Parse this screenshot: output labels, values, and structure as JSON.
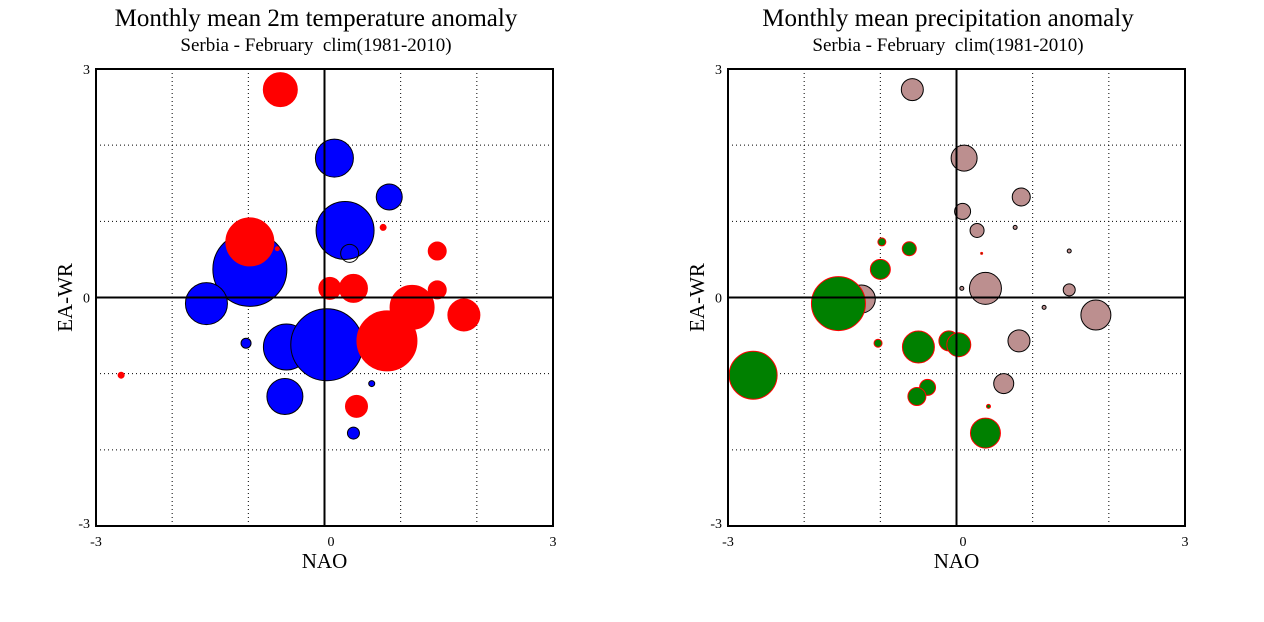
{
  "chart_data": [
    {
      "type": "scatter",
      "subtype": "bubble",
      "title": "Monthly mean 2m temperature anomaly",
      "subtitle": "Serbia - February  clim(1981-2010)",
      "xlabel": "NAO",
      "ylabel": "EA-WR",
      "xlim": [
        -3,
        3
      ],
      "ylim": [
        -3,
        3
      ],
      "xticks": [
        "-3",
        "0",
        "3"
      ],
      "yticks": [
        "-3",
        "0",
        "3"
      ],
      "grid": true,
      "colors": {
        "positive": "#ff0000",
        "negative": "#0000ff"
      },
      "points": [
        {
          "x": -0.58,
          "y": 2.73,
          "r": 17,
          "sign": "positive"
        },
        {
          "x": 0.13,
          "y": 1.83,
          "r": 19,
          "sign": "negative"
        },
        {
          "x": 0.85,
          "y": 1.32,
          "r": 13,
          "sign": "negative"
        },
        {
          "x": 0.08,
          "y": 1.13,
          "r": 2,
          "sign": "positive"
        },
        {
          "x": 0.27,
          "y": 0.88,
          "r": 29,
          "sign": "negative"
        },
        {
          "x": 0.77,
          "y": 0.92,
          "r": 3,
          "sign": "positive"
        },
        {
          "x": -0.98,
          "y": 0.37,
          "r": 37,
          "sign": "negative"
        },
        {
          "x": -0.98,
          "y": 0.73,
          "r": 24,
          "sign": "positive"
        },
        {
          "x": -0.62,
          "y": 0.64,
          "r": 2,
          "sign": "positive"
        },
        {
          "x": 0.33,
          "y": 0.58,
          "r": 9,
          "sign": "none"
        },
        {
          "x": 1.48,
          "y": 0.61,
          "r": 9,
          "sign": "positive"
        },
        {
          "x": 0.07,
          "y": 0.12,
          "r": 11,
          "sign": "positive"
        },
        {
          "x": 0.38,
          "y": 0.12,
          "r": 14,
          "sign": "positive"
        },
        {
          "x": 1.48,
          "y": 0.1,
          "r": 9,
          "sign": "positive"
        },
        {
          "x": -1.55,
          "y": -0.08,
          "r": 21,
          "sign": "negative"
        },
        {
          "x": 1.15,
          "y": -0.13,
          "r": 22,
          "sign": "positive"
        },
        {
          "x": 1.83,
          "y": -0.23,
          "r": 16,
          "sign": "positive"
        },
        {
          "x": -1.03,
          "y": -0.6,
          "r": 5,
          "sign": "negative"
        },
        {
          "x": -0.5,
          "y": -0.65,
          "r": 23,
          "sign": "negative"
        },
        {
          "x": 0.03,
          "y": -0.62,
          "r": 36,
          "sign": "negative"
        },
        {
          "x": 0.82,
          "y": -0.57,
          "r": 30,
          "sign": "positive"
        },
        {
          "x": -2.67,
          "y": -1.02,
          "r": 3,
          "sign": "positive"
        },
        {
          "x": 0.62,
          "y": -1.13,
          "r": 3,
          "sign": "negative"
        },
        {
          "x": -0.52,
          "y": -1.3,
          "r": 18,
          "sign": "negative"
        },
        {
          "x": 0.42,
          "y": -1.43,
          "r": 11,
          "sign": "positive"
        },
        {
          "x": 0.38,
          "y": -1.78,
          "r": 6,
          "sign": "negative"
        }
      ]
    },
    {
      "type": "scatter",
      "subtype": "bubble",
      "title": "Monthly mean precipitation anomaly",
      "subtitle": "Serbia - February  clim(1981-2010)",
      "xlabel": "NAO",
      "ylabel": "EA-WR",
      "xlim": [
        -3,
        3
      ],
      "ylim": [
        -3,
        3
      ],
      "xticks": [
        "-3",
        "0",
        "3"
      ],
      "yticks": [
        "-3",
        "0",
        "3"
      ],
      "grid": true,
      "colors": {
        "positive": "#bc8f8f",
        "negative": "#008000"
      },
      "points": [
        {
          "x": -0.58,
          "y": 2.73,
          "r": 11,
          "sign": "positive"
        },
        {
          "x": 0.1,
          "y": 1.83,
          "r": 13,
          "sign": "positive"
        },
        {
          "x": 0.85,
          "y": 1.32,
          "r": 9,
          "sign": "positive"
        },
        {
          "x": 0.08,
          "y": 1.13,
          "r": 8,
          "sign": "positive"
        },
        {
          "x": 0.27,
          "y": 0.88,
          "r": 7,
          "sign": "positive"
        },
        {
          "x": 0.77,
          "y": 0.92,
          "r": 2,
          "sign": "positive"
        },
        {
          "x": -0.98,
          "y": 0.73,
          "r": 4,
          "sign": "negative"
        },
        {
          "x": -0.62,
          "y": 0.64,
          "r": 7,
          "sign": "negative"
        },
        {
          "x": 0.33,
          "y": 0.58,
          "r": 1,
          "sign": "negative"
        },
        {
          "x": 1.48,
          "y": 0.61,
          "r": 2,
          "sign": "positive"
        },
        {
          "x": -1.0,
          "y": 0.37,
          "r": 10,
          "sign": "negative"
        },
        {
          "x": 0.07,
          "y": 0.12,
          "r": 2,
          "sign": "positive"
        },
        {
          "x": 0.38,
          "y": 0.12,
          "r": 16,
          "sign": "positive"
        },
        {
          "x": 1.48,
          "y": 0.1,
          "r": 6,
          "sign": "positive"
        },
        {
          "x": -1.25,
          "y": -0.02,
          "r": 14,
          "sign": "positive"
        },
        {
          "x": -1.55,
          "y": -0.08,
          "r": 27,
          "sign": "negative"
        },
        {
          "x": 1.15,
          "y": -0.13,
          "r": 2,
          "sign": "positive"
        },
        {
          "x": 1.83,
          "y": -0.23,
          "r": 15,
          "sign": "positive"
        },
        {
          "x": -1.03,
          "y": -0.6,
          "r": 4,
          "sign": "negative"
        },
        {
          "x": -0.5,
          "y": -0.65,
          "r": 16,
          "sign": "negative"
        },
        {
          "x": -0.1,
          "y": -0.57,
          "r": 10,
          "sign": "negative"
        },
        {
          "x": 0.03,
          "y": -0.62,
          "r": 12,
          "sign": "negative"
        },
        {
          "x": 0.82,
          "y": -0.57,
          "r": 11,
          "sign": "positive"
        },
        {
          "x": -2.67,
          "y": -1.02,
          "r": 24,
          "sign": "negative"
        },
        {
          "x": 0.62,
          "y": -1.13,
          "r": 10,
          "sign": "positive"
        },
        {
          "x": -0.38,
          "y": -1.18,
          "r": 8,
          "sign": "negative"
        },
        {
          "x": -0.52,
          "y": -1.3,
          "r": 9,
          "sign": "negative"
        },
        {
          "x": 0.42,
          "y": -1.43,
          "r": 2,
          "sign": "negative"
        },
        {
          "x": 0.38,
          "y": -1.78,
          "r": 15,
          "sign": "negative"
        }
      ]
    }
  ]
}
